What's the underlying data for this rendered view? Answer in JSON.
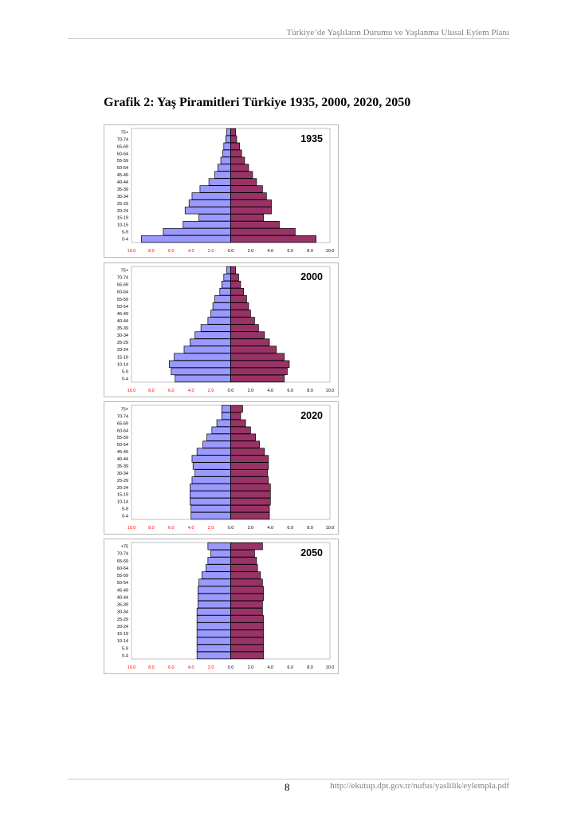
{
  "header": {
    "text": "Türkiye’de Yaşlıların Durumu ve Yaşlanma Ulusal Eylem Planı"
  },
  "figure": {
    "title": "Grafik 2: Yaş Piramitleri Türkiye 1935, 2000, 2020, 2050"
  },
  "footer": {
    "page_number": "8",
    "url": "http://ekutup.dpt.gov.tr/nufus/yaslilik/eylempla.pdf"
  },
  "colors": {
    "male": "#9999ff",
    "female": "#993366",
    "axis_label": "#ff0000",
    "border": "#000000"
  },
  "chart_data": [
    {
      "type": "bar",
      "title": "1935",
      "categories": [
        "75+",
        "70-74",
        "65-69",
        "60-64",
        "55-59",
        "50-54",
        "45-49",
        "40-44",
        "35-39",
        "30-34",
        "25-29",
        "20-24",
        "15-19",
        "10-15",
        "5-9",
        "0-4"
      ],
      "series": [
        {
          "values": [
            0.4,
            0.5,
            0.7,
            0.8,
            1.0,
            1.3,
            1.6,
            2.2,
            3.1,
            3.9,
            4.2,
            4.6,
            3.2,
            4.8,
            6.8,
            9.0
          ]
        },
        {
          "values": [
            0.5,
            0.6,
            0.9,
            1.1,
            1.4,
            1.8,
            2.2,
            2.6,
            3.2,
            3.6,
            4.1,
            4.1,
            3.3,
            4.9,
            6.5,
            8.6
          ]
        }
      ],
      "xlim": [
        -10,
        10
      ],
      "tick_labels": [
        "10.0",
        "8.0",
        "6.0",
        "4.0",
        "2.0",
        "0.0",
        "2.0",
        "4.0",
        "6.0",
        "8.0",
        "10.0"
      ]
    },
    {
      "type": "bar",
      "title": "2000",
      "categories": [
        "75+",
        "70-74",
        "65-69",
        "60-64",
        "55-59",
        "50-54",
        "45-49",
        "40-44",
        "35-39",
        "30-34",
        "25-29",
        "20-24",
        "15-19",
        "10-14",
        "5-9",
        "0-4"
      ],
      "series": [
        {
          "values": [
            0.4,
            0.7,
            0.9,
            1.1,
            1.6,
            1.8,
            2.0,
            2.3,
            3.0,
            3.6,
            4.1,
            4.7,
            5.7,
            6.2,
            6.0,
            5.6
          ]
        },
        {
          "values": [
            0.5,
            0.8,
            1.0,
            1.3,
            1.6,
            1.8,
            2.0,
            2.4,
            2.8,
            3.4,
            3.9,
            4.6,
            5.4,
            5.9,
            5.7,
            5.4
          ]
        }
      ],
      "xlim": [
        -10,
        10
      ],
      "tick_labels": [
        "10.0",
        "8.0",
        "6.0",
        "4.0",
        "2.0",
        "0.0",
        "2.0",
        "4.0",
        "6.0",
        "8.0",
        "10.0"
      ]
    },
    {
      "type": "bar",
      "title": "2020",
      "categories": [
        "75+",
        "70-74",
        "65-69",
        "60-64",
        "55-59",
        "50-54",
        "45-49",
        "40-44",
        "35-39",
        "30-34",
        "25-29",
        "20-24",
        "15-19",
        "10-14",
        "5-9",
        "0-4"
      ],
      "series": [
        {
          "values": [
            0.9,
            0.9,
            1.4,
            1.9,
            2.4,
            2.8,
            3.4,
            3.9,
            3.8,
            3.6,
            3.9,
            4.1,
            4.1,
            4.1,
            4.0,
            4.0
          ]
        },
        {
          "values": [
            1.2,
            1.0,
            1.5,
            2.0,
            2.5,
            2.9,
            3.4,
            3.8,
            3.8,
            3.7,
            3.8,
            4.0,
            4.0,
            4.0,
            3.9,
            3.9
          ]
        }
      ],
      "xlim": [
        -10,
        10
      ],
      "tick_labels": [
        "10.0",
        "8.0",
        "6.0",
        "4.0",
        "2.0",
        "0.0",
        "2.0",
        "4.0",
        "6.0",
        "8.0",
        "10.0"
      ]
    },
    {
      "type": "bar",
      "title": "2050",
      "categories": [
        "+75",
        "70-74",
        "65-69",
        "60-64",
        "55-59",
        "50-54",
        "45-49",
        "40-44",
        "35-39",
        "30-34",
        "25-29",
        "20-24",
        "15-19",
        "10-14",
        "5-9",
        "0-4"
      ],
      "series": [
        {
          "values": [
            2.3,
            2.0,
            2.3,
            2.5,
            2.9,
            3.2,
            3.3,
            3.3,
            3.3,
            3.4,
            3.4,
            3.4,
            3.4,
            3.4,
            3.4,
            3.4
          ]
        },
        {
          "values": [
            3.2,
            2.4,
            2.6,
            2.7,
            3.0,
            3.2,
            3.3,
            3.3,
            3.2,
            3.2,
            3.3,
            3.3,
            3.3,
            3.3,
            3.3,
            3.3
          ]
        }
      ],
      "xlim": [
        -10,
        10
      ],
      "tick_labels": [
        "10.0",
        "8.0",
        "6.0",
        "4.0",
        "2.0",
        "0.0",
        "2.0",
        "4.0",
        "6.0",
        "8.0",
        "10.0"
      ]
    }
  ]
}
